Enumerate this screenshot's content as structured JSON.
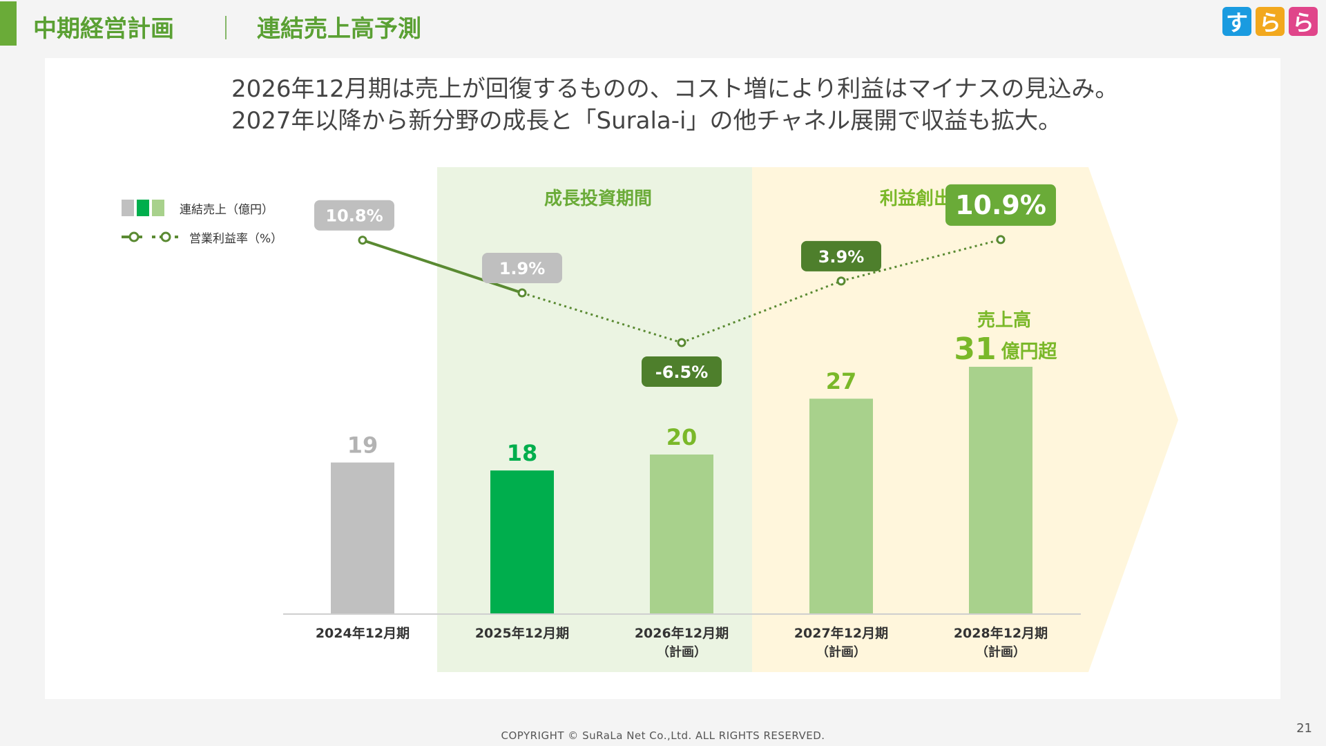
{
  "header": {
    "title": "中期経営計画",
    "separator": "｜",
    "subtitle": "連結売上高予測"
  },
  "logo": {
    "chars": [
      "す",
      "ら",
      "ら"
    ],
    "colors": [
      "#1a9be0",
      "#f2a81d",
      "#e0458a"
    ]
  },
  "headline": {
    "line1": "2026年12月期は売上が回復するものの、コスト増により利益はマイナスの見込み。",
    "line2": "2027年以降から新分野の成長と「Surala-i」の他チャネル展開で収益も拡大。"
  },
  "legend": {
    "sales_label": "連結売上（億円）",
    "margin_label": "営業利益率（%）"
  },
  "periods": {
    "growth_label": "成長投資期間",
    "profit_label": "利益創出期間"
  },
  "chart_data": {
    "type": "bar",
    "categories": [
      "2024年12月期",
      "2025年12月期",
      "2026年12月期",
      "2027年12月期",
      "2028年12月期"
    ],
    "category_notes": [
      "",
      "",
      "（計画）",
      "（計画）",
      "（計画）"
    ],
    "series": [
      {
        "name": "連結売上（億円）",
        "values": [
          19,
          18,
          20,
          27,
          31
        ],
        "value_labels": [
          "19",
          "18",
          "20",
          "27",
          ""
        ],
        "colors": [
          "#c0c0c0",
          "#00ae4d",
          "#a8d18c",
          "#a8d18c",
          "#a8d18c"
        ],
        "label_colors": [
          "#b3b3b3",
          "#00ae4d",
          "#7ab829",
          "#7ab829",
          "#7ab829"
        ]
      },
      {
        "name": "営業利益率（%）",
        "type": "line",
        "values": [
          10.8,
          1.9,
          -6.5,
          3.9,
          10.9
        ],
        "value_labels": [
          "10.8%",
          "1.9%",
          "-6.5%",
          "3.9%",
          "10.9%"
        ],
        "badge_colors": [
          "#bfbfbf",
          "#bfbfbf",
          "#4e7f2c",
          "#4e7f2c",
          "#6aab38"
        ],
        "color": "#5a8a32",
        "solid_segments": 1
      }
    ],
    "callout": {
      "line1": "売上高",
      "number": "31",
      "unit": "億円超"
    },
    "ylim": [
      0,
      31
    ]
  },
  "footer": {
    "copyright": "COPYRIGHT © SuRaLa Net Co.,Ltd. ALL RIGHTS RESERVED.",
    "page": "21"
  }
}
